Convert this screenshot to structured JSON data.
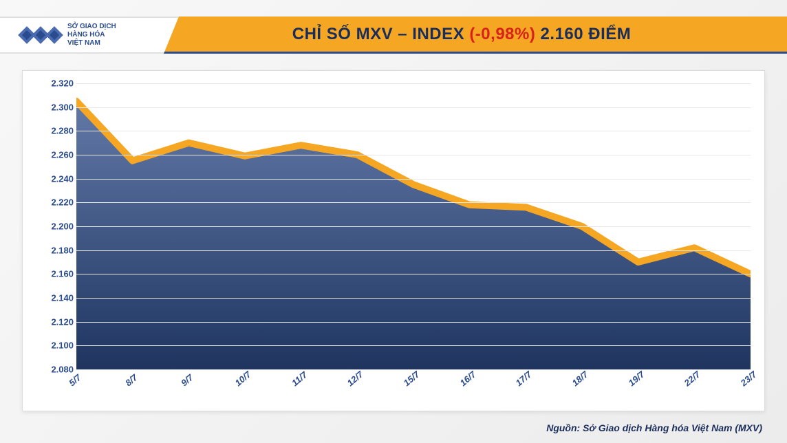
{
  "logo": {
    "line1": "SỞ GIAO DỊCH",
    "line2": "HÀNG HÓA",
    "line3": "VIỆT NAM",
    "brand_color": "#2a4b8d"
  },
  "title": {
    "prefix": "CHỈ SỐ MXV – INDEX ",
    "change": "(-0,98%)",
    "suffix": " 2.160 ĐIỂM",
    "text_color": "#1a2d5a",
    "change_color": "#d9221c",
    "bg_color": "#f5a623",
    "underline_color": "#2a4b8d",
    "fontsize": 24
  },
  "chart": {
    "type": "area",
    "ylim": [
      2080,
      2320
    ],
    "ytick_step": 20,
    "ytick_labels": [
      "2.080",
      "2.100",
      "2.120",
      "2.140",
      "2.160",
      "2.180",
      "2.200",
      "2.220",
      "2.240",
      "2.260",
      "2.280",
      "2.300",
      "2.320"
    ],
    "x_labels": [
      "5/7",
      "8/7",
      "9/7",
      "10/7",
      "11/7",
      "12/7",
      "15/7",
      "16/7",
      "17/7",
      "18/7",
      "19/7",
      "22/7",
      "23/7"
    ],
    "values": [
      2305,
      2255,
      2270,
      2259,
      2268,
      2260,
      2235,
      2218,
      2216,
      2200,
      2170,
      2182,
      2160
    ],
    "line_color": "#f5a623",
    "line_width": 4,
    "fill_top_color": "#6279a8",
    "fill_bottom_color": "#1f3560",
    "grid_color": "#e8e8e8",
    "background_color": "#ffffff",
    "axis_label_color": "#2a4b8d",
    "axis_label_fontsize": 13
  },
  "source": {
    "text": "Nguồn: Sở Giao dịch Hàng hóa Việt Nam (MXV)",
    "color": "#1a2d5a",
    "fontsize": 14
  }
}
